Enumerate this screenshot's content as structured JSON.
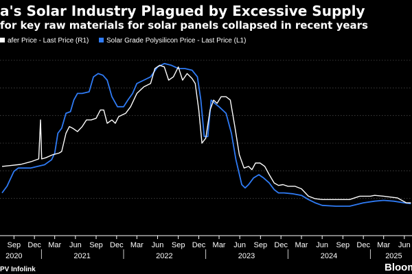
{
  "header": {
    "title": "a's Solar Industry Plagued by Excessive Supply",
    "subtitle": "for key raw materials for solar panels collapsed in recent years"
  },
  "footer": {
    "source": "PV Infolink",
    "brand": "Bloom"
  },
  "colors": {
    "background": "#000000",
    "wafer": "#ffffff",
    "polysilicon": "#2f7bf5",
    "grid": "#4a4a4a",
    "text": "#ffffff"
  },
  "chart_data": {
    "type": "line",
    "grid": true,
    "legend_position": "top-left",
    "series": [
      {
        "name": "afer Price - Last Price (R1)",
        "color": "#ffffff",
        "points": [
          [
            "2020-07-10",
            0.36
          ],
          [
            "2020-08-15",
            0.365
          ],
          [
            "2020-10-01",
            0.372
          ],
          [
            "2020-11-15",
            0.388
          ],
          [
            "2020-12-20",
            0.405
          ],
          [
            "2020-12-28",
            0.64
          ],
          [
            "2021-01-02",
            0.405
          ],
          [
            "2021-01-20",
            0.412
          ],
          [
            "2021-02-20",
            0.43
          ],
          [
            "2021-03-20",
            0.44
          ],
          [
            "2021-04-01",
            0.45
          ],
          [
            "2021-04-20",
            0.56
          ],
          [
            "2021-05-05",
            0.6
          ],
          [
            "2021-05-20",
            0.59
          ],
          [
            "2021-06-10",
            0.57
          ],
          [
            "2021-07-01",
            0.6
          ],
          [
            "2021-07-20",
            0.64
          ],
          [
            "2021-08-10",
            0.64
          ],
          [
            "2021-09-01",
            0.65
          ],
          [
            "2021-09-20",
            0.7
          ],
          [
            "2021-10-05",
            0.7
          ],
          [
            "2021-10-20",
            0.62
          ],
          [
            "2021-11-10",
            0.64
          ],
          [
            "2021-11-25",
            0.62
          ],
          [
            "2021-12-10",
            0.66
          ],
          [
            "2022-01-10",
            0.68
          ],
          [
            "2022-02-01",
            0.72
          ],
          [
            "2022-03-01",
            0.8
          ],
          [
            "2022-04-01",
            0.84
          ],
          [
            "2022-05-01",
            0.86
          ],
          [
            "2022-05-20",
            0.95
          ],
          [
            "2022-06-10",
            0.97
          ],
          [
            "2022-07-01",
            0.96
          ],
          [
            "2022-07-20",
            0.88
          ],
          [
            "2022-08-10",
            0.9
          ],
          [
            "2022-09-01",
            0.96
          ],
          [
            "2022-09-20",
            0.88
          ],
          [
            "2022-10-10",
            0.92
          ],
          [
            "2022-11-01",
            0.89
          ],
          [
            "2022-11-15",
            0.86
          ],
          [
            "2022-12-01",
            0.7
          ],
          [
            "2022-12-15",
            0.5
          ],
          [
            "2023-01-01",
            0.53
          ],
          [
            "2023-01-20",
            0.7
          ],
          [
            "2023-02-05",
            0.76
          ],
          [
            "2023-02-20",
            0.74
          ],
          [
            "2023-03-10",
            0.78
          ],
          [
            "2023-04-01",
            0.78
          ],
          [
            "2023-04-20",
            0.76
          ],
          [
            "2023-05-10",
            0.6
          ],
          [
            "2023-05-30",
            0.43
          ],
          [
            "2023-06-20",
            0.35
          ],
          [
            "2023-07-10",
            0.36
          ],
          [
            "2023-07-25",
            0.34
          ],
          [
            "2023-08-10",
            0.38
          ],
          [
            "2023-08-30",
            0.38
          ],
          [
            "2023-09-20",
            0.36
          ],
          [
            "2023-10-10",
            0.31
          ],
          [
            "2023-11-01",
            0.26
          ],
          [
            "2023-11-20",
            0.245
          ],
          [
            "2023-12-10",
            0.25
          ],
          [
            "2024-01-01",
            0.24
          ],
          [
            "2024-02-01",
            0.24
          ],
          [
            "2024-03-01",
            0.225
          ],
          [
            "2024-04-01",
            0.18
          ],
          [
            "2024-05-01",
            0.165
          ],
          [
            "2024-06-01",
            0.16
          ],
          [
            "2024-08-01",
            0.16
          ],
          [
            "2024-10-01",
            0.16
          ],
          [
            "2024-11-15",
            0.18
          ],
          [
            "2025-01-01",
            0.18
          ],
          [
            "2025-01-20",
            0.185
          ],
          [
            "2025-03-01",
            0.18
          ],
          [
            "2025-05-01",
            0.17
          ],
          [
            "2025-06-10",
            0.14
          ],
          [
            "2025-06-30",
            0.14
          ]
        ]
      },
      {
        "name": "Solar Grade Polysilicon Price - Last Price (L1)",
        "color": "#2f7bf5",
        "points": [
          [
            "2020-07-10",
            0.2
          ],
          [
            "2020-08-01",
            0.24
          ],
          [
            "2020-09-01",
            0.33
          ],
          [
            "2020-09-20",
            0.35
          ],
          [
            "2020-10-15",
            0.35
          ],
          [
            "2020-11-15",
            0.35
          ],
          [
            "2020-12-15",
            0.36
          ],
          [
            "2021-01-15",
            0.37
          ],
          [
            "2021-02-15",
            0.4
          ],
          [
            "2021-03-01",
            0.44
          ],
          [
            "2021-03-15",
            0.56
          ],
          [
            "2021-04-01",
            0.59
          ],
          [
            "2021-04-20",
            0.68
          ],
          [
            "2021-05-10",
            0.69
          ],
          [
            "2021-05-25",
            0.76
          ],
          [
            "2021-06-10",
            0.8
          ],
          [
            "2021-07-01",
            0.8
          ],
          [
            "2021-08-01",
            0.81
          ],
          [
            "2021-08-20",
            0.9
          ],
          [
            "2021-09-10",
            0.92
          ],
          [
            "2021-10-01",
            0.91
          ],
          [
            "2021-10-20",
            0.88
          ],
          [
            "2021-11-10",
            0.78
          ],
          [
            "2021-12-05",
            0.72
          ],
          [
            "2022-01-01",
            0.72
          ],
          [
            "2022-01-20",
            0.76
          ],
          [
            "2022-02-10",
            0.8
          ],
          [
            "2022-03-01",
            0.86
          ],
          [
            "2022-04-01",
            0.88
          ],
          [
            "2022-05-01",
            0.9
          ],
          [
            "2022-06-01",
            0.96
          ],
          [
            "2022-07-01",
            0.98
          ],
          [
            "2022-08-01",
            0.97
          ],
          [
            "2022-09-01",
            0.95
          ],
          [
            "2022-10-01",
            0.95
          ],
          [
            "2022-11-01",
            0.94
          ],
          [
            "2022-11-25",
            0.9
          ],
          [
            "2022-12-10",
            0.76
          ],
          [
            "2022-12-25",
            0.54
          ],
          [
            "2023-01-10",
            0.54
          ],
          [
            "2023-01-25",
            0.76
          ],
          [
            "2023-02-10",
            0.74
          ],
          [
            "2023-03-01",
            0.72
          ],
          [
            "2023-04-01",
            0.68
          ],
          [
            "2023-04-25",
            0.56
          ],
          [
            "2023-05-15",
            0.4
          ],
          [
            "2023-06-10",
            0.25
          ],
          [
            "2023-06-25",
            0.23
          ],
          [
            "2023-07-10",
            0.25
          ],
          [
            "2023-08-01",
            0.29
          ],
          [
            "2023-08-25",
            0.31
          ],
          [
            "2023-09-15",
            0.29
          ],
          [
            "2023-10-10",
            0.26
          ],
          [
            "2023-11-01",
            0.22
          ],
          [
            "2023-11-20",
            0.2
          ],
          [
            "2023-12-15",
            0.2
          ],
          [
            "2024-01-20",
            0.195
          ],
          [
            "2024-03-01",
            0.185
          ],
          [
            "2024-04-01",
            0.16
          ],
          [
            "2024-05-01",
            0.14
          ],
          [
            "2024-06-01",
            0.125
          ],
          [
            "2024-08-01",
            0.12
          ],
          [
            "2024-10-01",
            0.12
          ],
          [
            "2024-12-01",
            0.14
          ],
          [
            "2025-01-20",
            0.15
          ],
          [
            "2025-03-01",
            0.155
          ],
          [
            "2025-04-15",
            0.15
          ],
          [
            "2025-06-01",
            0.14
          ],
          [
            "2025-06-30",
            0.135
          ]
        ]
      }
    ],
    "x_ticks": [
      {
        "label": "Sep",
        "date": "2020-09-01"
      },
      {
        "label": "Dec",
        "date": "2020-12-01"
      },
      {
        "label": "Mar",
        "date": "2021-03-01"
      },
      {
        "label": "Jun",
        "date": "2021-06-01"
      },
      {
        "label": "Sep",
        "date": "2021-09-01"
      },
      {
        "label": "Dec",
        "date": "2021-12-01"
      },
      {
        "label": "Mar",
        "date": "2022-03-01"
      },
      {
        "label": "Jun",
        "date": "2022-06-01"
      },
      {
        "label": "Sep",
        "date": "2022-09-01"
      },
      {
        "label": "Dec",
        "date": "2022-12-01"
      },
      {
        "label": "Mar",
        "date": "2023-03-01"
      },
      {
        "label": "Jun",
        "date": "2023-06-01"
      },
      {
        "label": "Sep",
        "date": "2023-09-01"
      },
      {
        "label": "Dec",
        "date": "2023-12-01"
      },
      {
        "label": "Mar",
        "date": "2024-03-01"
      },
      {
        "label": "Jun",
        "date": "2024-06-01"
      },
      {
        "label": "Sep",
        "date": "2024-09-01"
      },
      {
        "label": "Dec",
        "date": "2024-12-01"
      },
      {
        "label": "Mar",
        "date": "2025-03-01"
      },
      {
        "label": "Jun",
        "date": "2025-06-01"
      }
    ],
    "years": [
      {
        "label": "2020",
        "date": "2020-09-01"
      },
      {
        "label": "2021",
        "date": "2021-07-01"
      },
      {
        "label": "2022",
        "date": "2022-07-01"
      },
      {
        "label": "2023",
        "date": "2023-07-01"
      },
      {
        "label": "2024",
        "date": "2024-07-01"
      },
      {
        "label": "2025",
        "date": "2025-04-15"
      }
    ],
    "y_grid_count": 6
  }
}
